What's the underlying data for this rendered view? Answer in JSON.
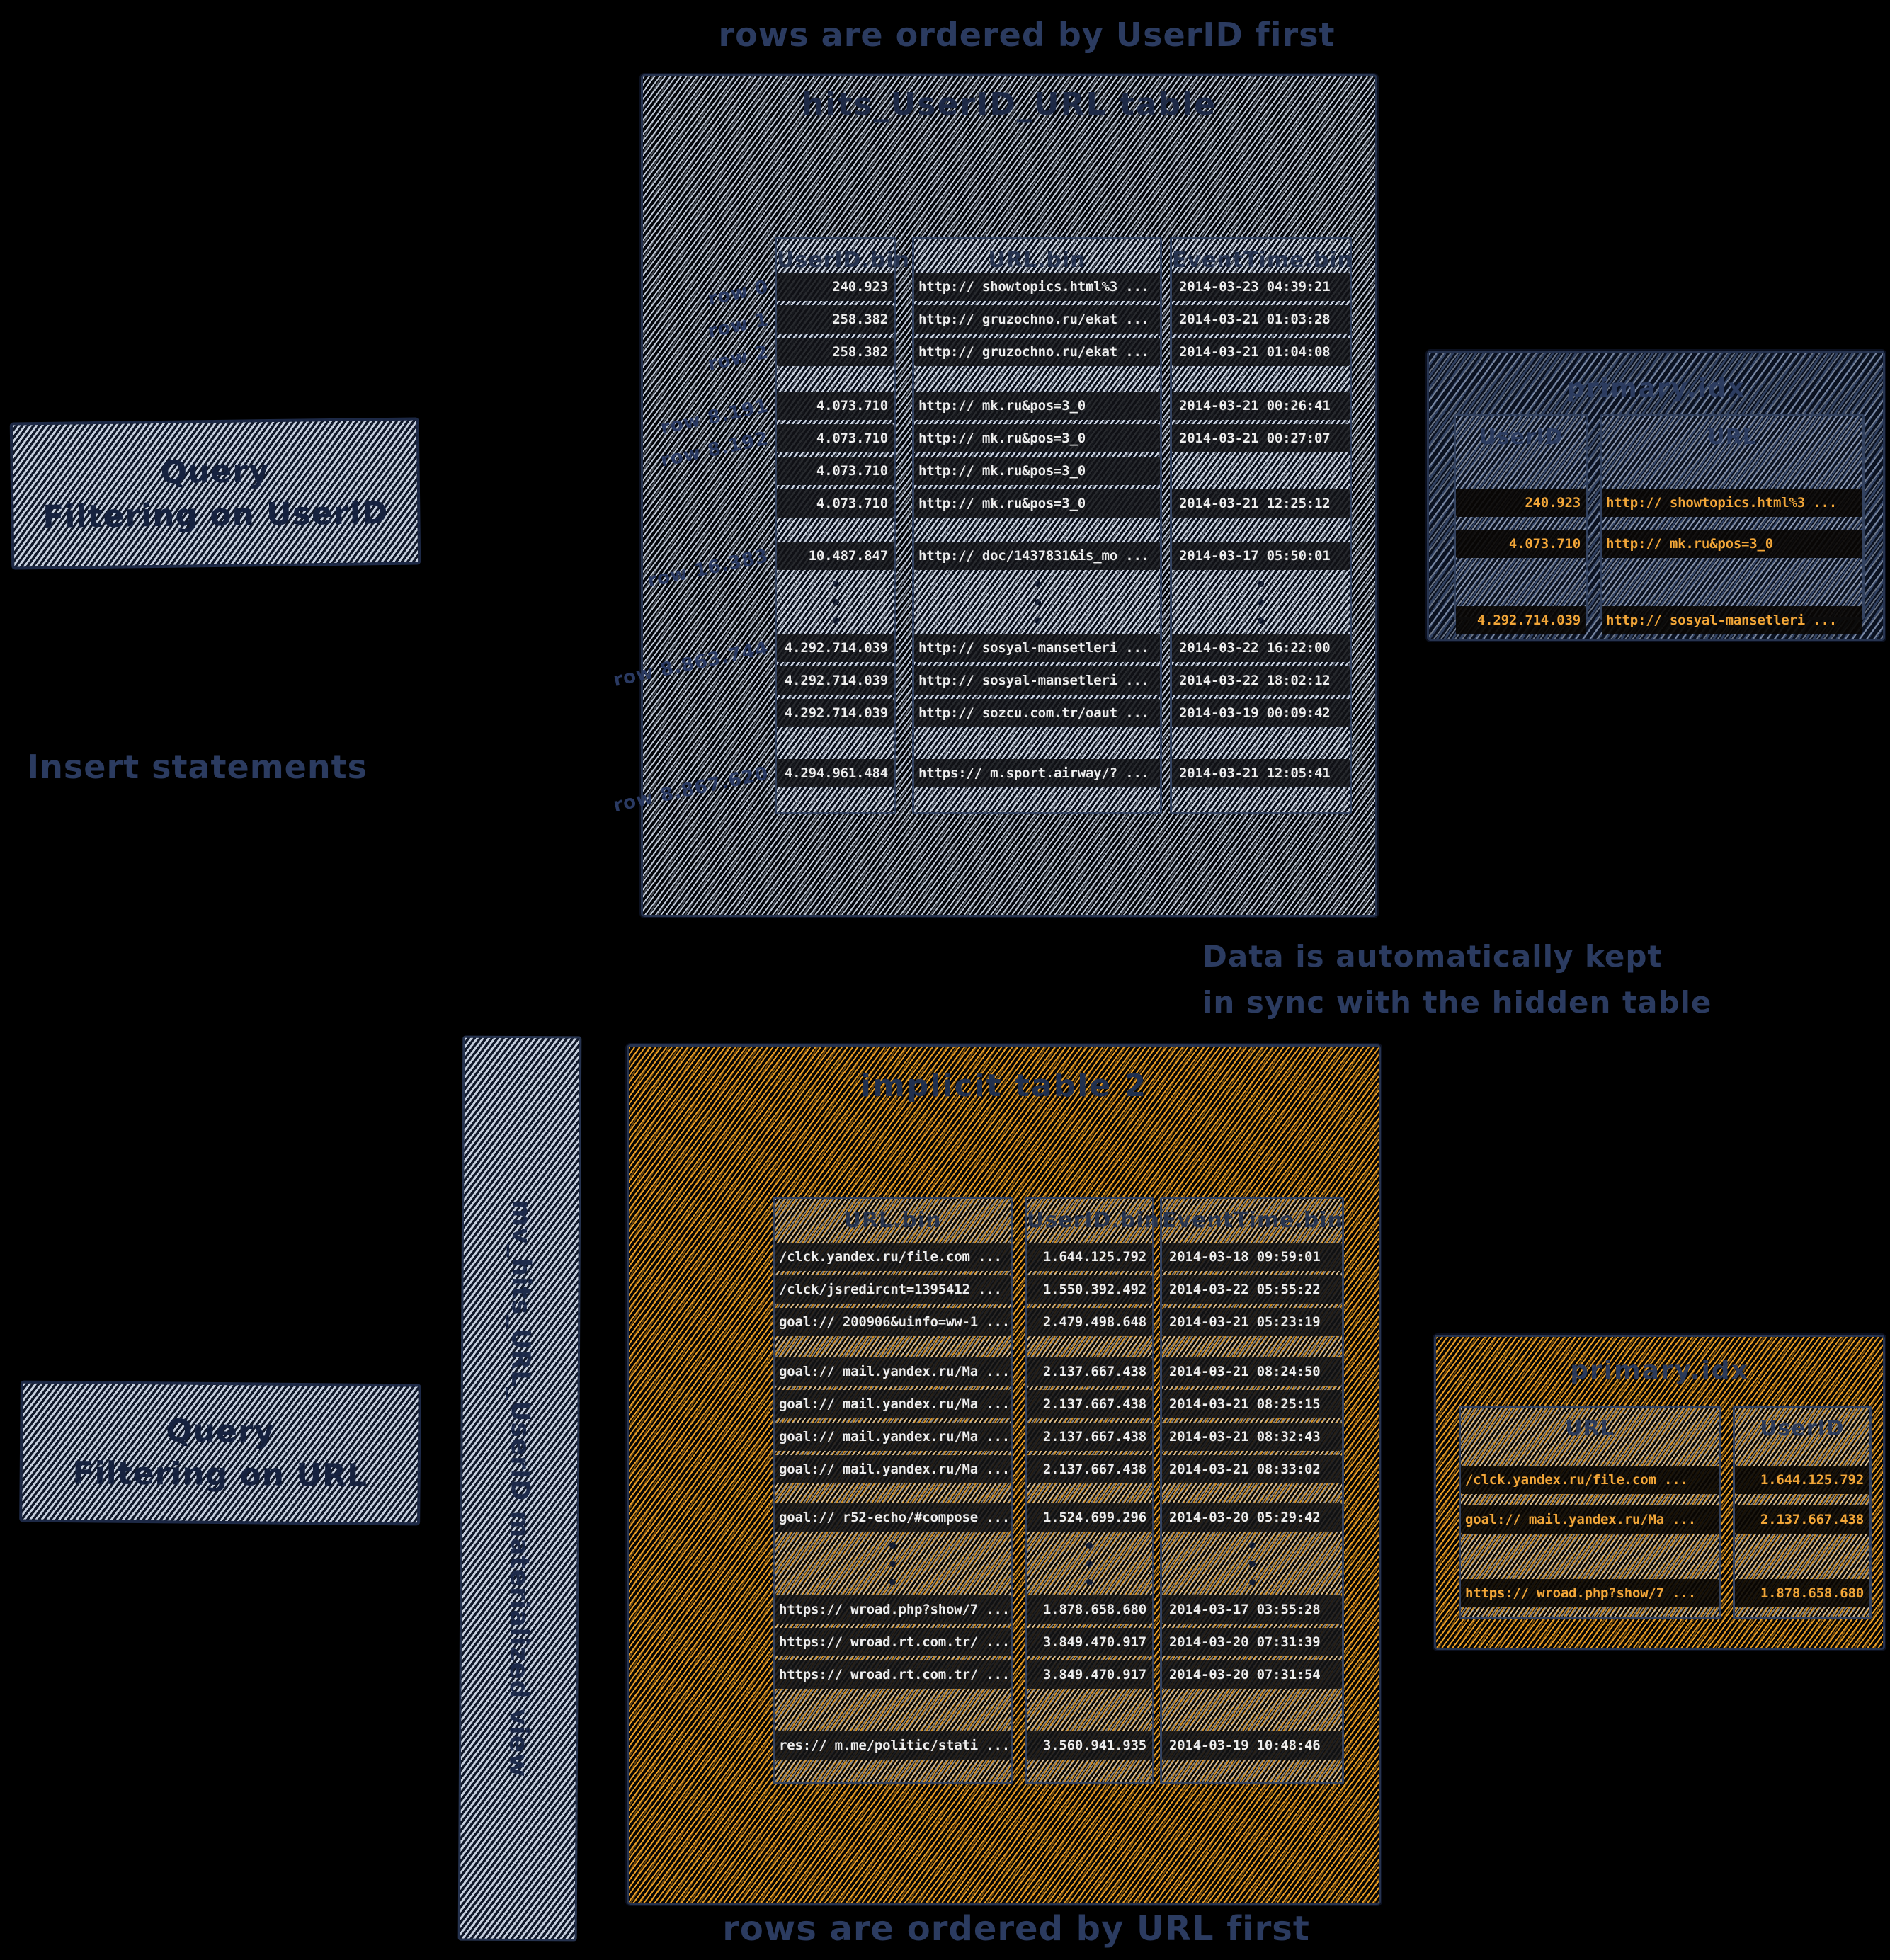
{
  "colors": {
    "background": "#000000",
    "ink_navy": "#2b3b60",
    "gray_hatch": "#ccd5e3",
    "orange_hatch": "#f5a62a",
    "data_text_white": "#ededed",
    "data_text_orange": "#f2a638"
  },
  "captions": {
    "top": "rows are ordered by UserID first",
    "insert": "Insert statements",
    "sync": [
      "Data is automatically kept",
      "in sync with the hidden table"
    ],
    "bottom": "rows are ordered by URL first"
  },
  "query_userid": {
    "line1": "Query",
    "line2": "Filtering on UserID"
  },
  "query_url": {
    "line1": "Query",
    "line2": "Filtering on URL"
  },
  "mv_label": "mv_hits_URL_UserID materialized view",
  "main_table": {
    "title": "hits_UserID_URL table",
    "columns": [
      "UserID.bin",
      "URL.bin",
      "EventTime.bin"
    ],
    "row_labels": [
      {
        "text": "row 0",
        "row": 0
      },
      {
        "text": "row 1",
        "row": 1
      },
      {
        "text": "row 2",
        "row": 2
      },
      {
        "text": "row 8.191",
        "row": 3
      },
      {
        "text": "row 8.192",
        "row": 4
      },
      {
        "text": "row 16.383",
        "row": 7
      },
      {
        "text": "row 8.863.744",
        "row": 8
      },
      {
        "text": "row 8.867.620",
        "row": 11
      }
    ],
    "groups": [
      [
        [
          "240.923",
          "http:// showtopics.html%3 ...",
          "2014-03-23 04:39:21"
        ],
        [
          "258.382",
          "http:// gruzochno.ru/ekat ...",
          "2014-03-21 01:03:28"
        ],
        [
          "258.382",
          "http:// gruzochno.ru/ekat ...",
          "2014-03-21 01:04:08"
        ]
      ],
      [
        [
          "4.073.710",
          "http:// mk.ru&pos=3_0",
          "2014-03-21 00:26:41"
        ],
        [
          "4.073.710",
          "http:// mk.ru&pos=3_0",
          "2014-03-21 00:27:07"
        ],
        [
          "4.073.710",
          "http:// mk.ru&pos=3_0",
          null
        ],
        [
          "4.073.710",
          "http:// mk.ru&pos=3_0",
          "2014-03-21 12:25:12"
        ]
      ],
      [
        [
          "10.487.847",
          "http:// doc/1437831&is_mo ...",
          "2014-03-17 05:50:01"
        ]
      ],
      [
        [
          "4.292.714.039",
          "http:// sosyal-mansetleri ...",
          "2014-03-22 16:22:00"
        ],
        [
          "4.292.714.039",
          "http:// sosyal-mansetleri ...",
          "2014-03-22 18:02:12"
        ],
        [
          "4.292.714.039",
          "http:// sozcu.com.tr/oaut ...",
          "2014-03-19 00:09:42"
        ]
      ],
      [
        [
          "4.294.961.484",
          "https:// m.sport.airway/? ...",
          "2014-03-21 12:05:41"
        ]
      ]
    ]
  },
  "implicit_table": {
    "title": "implicit table 2",
    "columns": [
      "URL.bin",
      "UserID.bin",
      "EventTime.bin"
    ],
    "groups": [
      [
        [
          "/clck.yandex.ru/file.com ...",
          "1.644.125.792",
          "2014-03-18 09:59:01"
        ],
        [
          "/clck/jsredircnt=1395412 ...",
          "1.550.392.492",
          "2014-03-22 05:55:22"
        ],
        [
          "goal:// 200906&uinfo=ww-1 ...",
          "2.479.498.648",
          "2014-03-21 05:23:19"
        ]
      ],
      [
        [
          "goal:// mail.yandex.ru/Ma ...",
          "2.137.667.438",
          "2014-03-21 08:24:50"
        ],
        [
          "goal:// mail.yandex.ru/Ma ...",
          "2.137.667.438",
          "2014-03-21 08:25:15"
        ],
        [
          "goal:// mail.yandex.ru/Ma ...",
          "2.137.667.438",
          "2014-03-21 08:32:43"
        ],
        [
          "goal:// mail.yandex.ru/Ma ...",
          "2.137.667.438",
          "2014-03-21 08:33:02"
        ]
      ],
      [
        [
          "goal:// r52-echo/#compose ...",
          "1.524.699.296",
          "2014-03-20 05:29:42"
        ]
      ],
      [
        [
          "https:// wroad.php?show/7 ...",
          "1.878.658.680",
          "2014-03-17 03:55:28"
        ],
        [
          "https:// wroad.rt.com.tr/ ...",
          "3.849.470.917",
          "2014-03-20 07:31:39"
        ],
        [
          "https:// wroad.rt.com.tr/ ...",
          "3.849.470.917",
          "2014-03-20 07:31:54"
        ]
      ],
      [
        [
          "res:// m.me/politic/stati ...",
          "3.560.941.935",
          "2014-03-19 10:48:46"
        ]
      ]
    ]
  },
  "index_userid": {
    "title": "primary.idx",
    "columns": [
      "UserID",
      "URL"
    ],
    "rows": [
      [
        "240.923",
        "http:// showtopics.html%3 ..."
      ],
      [
        "4.073.710",
        "http:// mk.ru&pos=3_0"
      ],
      [
        "4.292.714.039",
        "http:// sosyal-mansetleri ..."
      ]
    ]
  },
  "index_url": {
    "title": "primary.idx",
    "columns": [
      "URL",
      "UserID"
    ],
    "rows": [
      [
        "/clck.yandex.ru/file.com ...",
        "1.644.125.792"
      ],
      [
        "goal:// mail.yandex.ru/Ma ...",
        "2.137.667.438"
      ],
      [
        "https:// wroad.php?show/7 ...",
        "1.878.658.680"
      ]
    ]
  }
}
